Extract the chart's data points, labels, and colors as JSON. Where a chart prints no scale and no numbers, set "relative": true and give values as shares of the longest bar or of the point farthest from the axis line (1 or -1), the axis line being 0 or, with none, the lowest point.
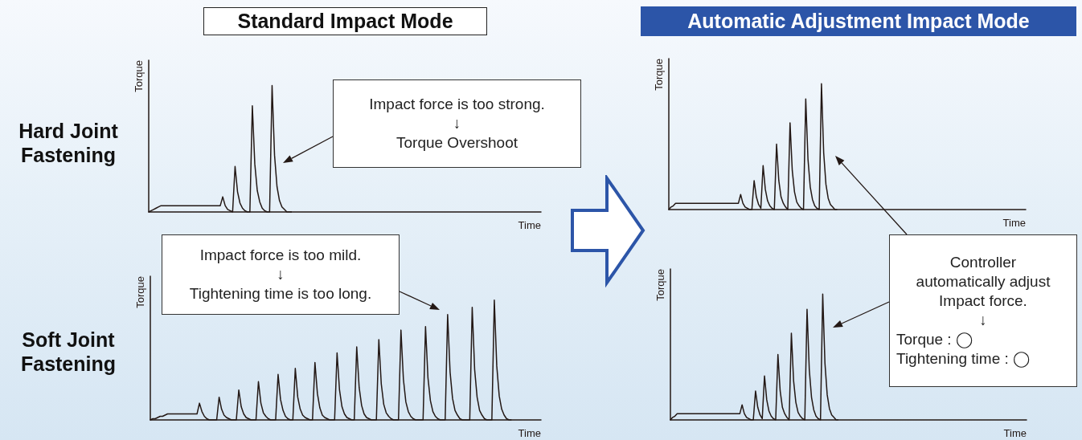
{
  "chart_data": [
    {
      "type": "line",
      "title": "Standard Impact Mode",
      "subtitle": "Hard Joint Fastening",
      "xlabel": "Time",
      "ylabel": "Torque",
      "relative": true,
      "grid": false,
      "annotations": [
        "Impact force is too strong.\n↓\nTorque Overshoot"
      ],
      "categories": [
        null,
        null,
        null,
        null,
        null,
        null,
        null,
        null,
        null,
        null,
        null,
        null,
        null,
        null,
        null,
        null,
        null,
        null,
        null,
        null,
        null,
        null,
        null,
        null,
        null,
        null,
        null,
        null,
        null,
        null,
        null,
        null,
        null,
        null,
        null,
        null,
        null,
        null,
        null,
        null,
        null,
        null,
        null,
        null,
        null,
        null,
        null,
        null,
        null,
        null,
        null,
        null,
        null,
        null,
        null,
        null,
        null,
        null,
        null,
        null,
        null,
        null,
        null,
        null,
        null,
        null,
        null,
        null,
        null,
        null,
        null,
        null,
        null,
        null,
        null,
        null,
        null,
        null,
        null,
        null,
        null,
        null,
        null,
        null,
        null,
        null,
        null,
        null,
        null,
        null,
        null,
        null,
        null,
        null,
        null,
        null,
        null,
        null,
        null,
        null,
        null,
        null,
        null,
        null,
        null,
        null,
        null,
        null,
        null,
        null,
        null,
        null,
        null,
        null,
        null,
        null,
        null,
        null,
        null,
        null,
        null,
        null,
        null,
        null,
        null,
        null,
        null,
        null,
        null,
        null,
        null,
        null,
        null,
        null,
        null,
        null,
        null,
        null,
        null,
        null,
        null,
        null,
        null,
        null,
        null,
        null,
        null,
        null,
        null,
        null,
        null,
        null,
        null,
        null,
        null,
        null,
        null,
        null,
        null,
        null
      ],
      "series": [
        {
          "color": "#231815",
          "values": [
            0,
            0.01,
            0.02,
            0.03,
            0.04,
            0.05,
            0.05,
            0.05,
            0.05,
            0.05,
            0.05,
            0.05,
            0.05,
            0.05,
            0.05,
            0.05,
            0.05,
            0.05,
            0.05,
            0.05,
            0.05,
            0.05,
            0.05,
            0.05,
            0.05,
            0.05,
            0.05,
            0.05,
            0.05,
            0.05,
            0.12,
            0.05,
            0.02,
            0.01,
            0,
            0.36,
            0.16,
            0.07,
            0.03,
            0.01,
            0,
            0,
            0.84,
            0.38,
            0.17,
            0.08,
            0.03,
            0.01,
            0,
            0,
            1,
            0.45,
            0.2,
            0.09,
            0.04,
            0.02,
            0,
            0,
            0,
            null,
            null,
            null,
            null,
            null,
            null,
            null,
            null,
            null,
            null,
            null,
            null,
            null,
            null,
            null,
            null,
            null,
            null,
            null,
            null,
            null,
            null,
            null,
            null,
            null,
            null,
            null,
            null,
            null,
            null,
            null,
            null,
            null,
            null,
            null,
            null,
            null,
            null,
            null,
            null,
            null,
            null,
            null,
            null,
            null,
            null,
            null,
            null,
            null,
            null,
            null,
            null,
            null,
            null,
            null,
            null,
            null,
            null,
            null,
            null,
            null,
            null,
            null,
            null,
            null,
            null,
            null,
            null,
            null,
            null,
            null,
            null,
            null,
            null,
            null,
            null,
            null,
            null,
            null,
            null,
            null,
            null,
            null,
            null,
            null,
            null,
            null,
            null,
            null,
            null,
            null,
            null,
            null,
            null,
            null,
            null,
            null,
            null,
            null,
            null,
            null
          ]
        }
      ]
    },
    {
      "type": "line",
      "subtitle": "Soft Joint Fastening",
      "xlabel": "Time",
      "ylabel": "Torque",
      "relative": true,
      "grid": false,
      "annotations": [
        "Impact force is too mild.\n↓\nTightening time is too long."
      ],
      "categories": [
        null,
        null,
        null,
        null,
        null,
        null,
        null,
        null,
        null,
        null,
        null,
        null,
        null,
        null,
        null,
        null,
        null,
        null,
        null,
        null,
        null,
        null,
        null,
        null,
        null,
        null,
        null,
        null,
        null,
        null,
        null,
        null,
        null,
        null,
        null,
        null,
        null,
        null,
        null,
        null,
        null,
        null,
        null,
        null,
        null,
        null,
        null,
        null,
        null,
        null,
        null,
        null,
        null,
        null,
        null,
        null,
        null,
        null,
        null,
        null,
        null,
        null,
        null,
        null,
        null,
        null,
        null,
        null,
        null,
        null,
        null,
        null,
        null,
        null,
        null,
        null,
        null,
        null,
        null,
        null,
        null,
        null,
        null,
        null,
        null,
        null,
        null,
        null,
        null,
        null,
        null,
        null,
        null,
        null,
        null,
        null,
        null,
        null,
        null,
        null,
        null,
        null,
        null,
        null,
        null,
        null,
        null,
        null,
        null,
        null,
        null,
        null,
        null,
        null,
        null,
        null,
        null,
        null,
        null,
        null,
        null,
        null,
        null,
        null,
        null,
        null,
        null,
        null,
        null,
        null,
        null,
        null,
        null,
        null,
        null,
        null,
        null,
        null,
        null,
        null,
        null,
        null,
        null,
        null,
        null,
        null,
        null,
        null,
        null,
        null,
        null,
        null,
        null,
        null,
        null,
        null,
        null,
        null,
        null,
        null
      ],
      "series": [
        {
          "color": "#231815",
          "values": [
            0,
            0.01,
            0.01,
            0.02,
            0.03,
            0.03,
            0.04,
            0.05,
            0.05,
            0.05,
            0.05,
            0.05,
            0.05,
            0.05,
            0.05,
            0.05,
            0.05,
            0.05,
            0.05,
            0.05,
            0.14,
            0.07,
            0.03,
            0.01,
            0,
            0,
            0,
            0,
            0.19,
            0.09,
            0.04,
            0.02,
            0.01,
            0,
            0,
            0,
            0.25,
            0.11,
            0.05,
            0.02,
            0.01,
            0,
            0,
            0,
            0.32,
            0.14,
            0.06,
            0.03,
            0.01,
            0,
            0,
            0,
            0.38,
            0.17,
            0.08,
            0.03,
            0.01,
            0,
            0,
            0.43,
            0.19,
            0.09,
            0.04,
            0.02,
            0.01,
            0,
            0,
            0.48,
            0.22,
            0.1,
            0.04,
            0.02,
            0.01,
            0,
            0,
            0,
            0.56,
            0.25,
            0.11,
            0.05,
            0.02,
            0.01,
            0,
            0,
            0.61,
            0.27,
            0.12,
            0.05,
            0.02,
            0.01,
            0,
            0,
            0,
            0.67,
            0.3,
            0.13,
            0.06,
            0.03,
            0.01,
            0,
            0,
            0,
            0.75,
            0.34,
            0.15,
            0.07,
            0.03,
            0.01,
            0,
            0,
            0,
            0,
            0.78,
            0.35,
            0.16,
            0.07,
            0.03,
            0.01,
            0,
            0,
            0,
            0.88,
            0.4,
            0.18,
            0.08,
            0.04,
            0.01,
            0,
            0,
            0,
            0,
            0.94,
            0.42,
            0.19,
            0.08,
            0.04,
            0.01,
            0,
            0,
            0,
            1,
            0.45,
            0.2,
            0.09,
            0.04,
            0.01,
            0,
            0,
            null,
            null,
            null,
            null,
            null,
            null,
            null,
            null,
            null,
            null,
            null,
            null
          ]
        }
      ]
    },
    {
      "type": "line",
      "title": "Automatic Adjustment Impact Mode",
      "xlabel": "Time",
      "ylabel": "Torque",
      "relative": true,
      "grid": false,
      "categories": [
        null,
        null,
        null,
        null,
        null,
        null,
        null,
        null,
        null,
        null,
        null,
        null,
        null,
        null,
        null,
        null,
        null,
        null,
        null,
        null,
        null,
        null,
        null,
        null,
        null,
        null,
        null,
        null,
        null,
        null,
        null,
        null,
        null,
        null,
        null,
        null,
        null,
        null,
        null,
        null,
        null,
        null,
        null,
        null,
        null,
        null,
        null,
        null,
        null,
        null,
        null,
        null,
        null,
        null,
        null,
        null,
        null,
        null,
        null,
        null,
        null,
        null,
        null,
        null,
        null,
        null,
        null,
        null,
        null,
        null,
        null,
        null,
        null,
        null,
        null,
        null,
        null,
        null,
        null,
        null,
        null,
        null,
        null,
        null,
        null,
        null,
        null,
        null,
        null,
        null,
        null,
        null,
        null,
        null,
        null,
        null,
        null,
        null,
        null,
        null,
        null,
        null,
        null,
        null,
        null,
        null,
        null,
        null,
        null,
        null,
        null,
        null,
        null,
        null,
        null,
        null,
        null,
        null,
        null,
        null,
        null,
        null,
        null,
        null,
        null,
        null,
        null,
        null,
        null,
        null,
        null,
        null,
        null,
        null,
        null,
        null,
        null,
        null,
        null,
        null,
        null,
        null,
        null,
        null,
        null,
        null,
        null,
        null,
        null,
        null,
        null,
        null,
        null,
        null,
        null,
        null,
        null,
        null,
        null,
        null
      ],
      "series": [
        {
          "color": "#231815",
          "values": [
            0,
            0.02,
            0.03,
            0.05,
            0.05,
            0.05,
            0.05,
            0.05,
            0.05,
            0.05,
            0.05,
            0.05,
            0.05,
            0.05,
            0.05,
            0.05,
            0.05,
            0.05,
            0.05,
            0.05,
            0.05,
            0.05,
            0.05,
            0.05,
            0.05,
            0.05,
            0.05,
            0.05,
            0.05,
            0.05,
            0.05,
            0.05,
            0.12,
            0.05,
            0.02,
            0.01,
            0,
            0,
            0.23,
            0.1,
            0.04,
            0.01,
            0.35,
            0.16,
            0.07,
            0.03,
            0.01,
            0,
            0.52,
            0.23,
            0.1,
            0.05,
            0.02,
            0,
            0.69,
            0.31,
            0.14,
            0.06,
            0.03,
            0.01,
            0,
            0.88,
            0.4,
            0.18,
            0.08,
            0.03,
            0.01,
            0,
            1,
            0.45,
            0.2,
            0.09,
            0.04,
            0.02,
            0,
            0,
            null,
            null,
            null,
            null,
            null,
            null,
            null,
            null,
            null,
            null,
            null,
            null,
            null,
            null,
            null,
            null,
            null,
            null,
            null,
            null,
            null,
            null,
            null,
            null,
            null,
            null,
            null,
            null,
            null,
            null,
            null,
            null,
            null,
            null,
            null,
            null,
            null,
            null,
            null,
            null,
            null,
            null,
            null,
            null,
            null,
            null,
            null,
            null,
            null,
            null,
            null,
            null,
            null,
            null,
            null,
            null,
            null,
            null,
            null,
            null,
            null,
            null,
            null,
            null,
            null,
            null,
            null,
            null,
            null,
            null,
            null,
            null,
            null,
            null,
            null,
            null,
            null,
            null,
            null,
            null,
            null,
            null,
            null,
            null
          ]
        }
      ]
    },
    {
      "type": "line",
      "xlabel": "Time",
      "ylabel": "Torque",
      "relative": true,
      "grid": false,
      "annotations": [
        "Controller\nautomatically adjust\nImpact force.\n↓",
        "Torque : ◯\nTightening time : ◯"
      ],
      "categories": [
        null,
        null,
        null,
        null,
        null,
        null,
        null,
        null,
        null,
        null,
        null,
        null,
        null,
        null,
        null,
        null,
        null,
        null,
        null,
        null,
        null,
        null,
        null,
        null,
        null,
        null,
        null,
        null,
        null,
        null,
        null,
        null,
        null,
        null,
        null,
        null,
        null,
        null,
        null,
        null,
        null,
        null,
        null,
        null,
        null,
        null,
        null,
        null,
        null,
        null,
        null,
        null,
        null,
        null,
        null,
        null,
        null,
        null,
        null,
        null,
        null,
        null,
        null,
        null,
        null,
        null,
        null,
        null,
        null,
        null,
        null,
        null,
        null,
        null,
        null,
        null,
        null,
        null,
        null,
        null,
        null,
        null,
        null,
        null,
        null,
        null,
        null,
        null,
        null,
        null,
        null,
        null,
        null,
        null,
        null,
        null,
        null,
        null,
        null,
        null,
        null,
        null,
        null,
        null,
        null,
        null,
        null,
        null,
        null,
        null,
        null,
        null,
        null,
        null,
        null,
        null,
        null,
        null,
        null,
        null,
        null,
        null,
        null,
        null,
        null,
        null,
        null,
        null,
        null,
        null,
        null,
        null,
        null,
        null,
        null,
        null,
        null,
        null,
        null,
        null,
        null,
        null,
        null,
        null,
        null,
        null,
        null,
        null,
        null,
        null,
        null,
        null,
        null,
        null,
        null,
        null,
        null,
        null,
        null,
        null
      ],
      "series": [
        {
          "color": "#231815",
          "values": [
            0,
            0.02,
            0.03,
            0.05,
            0.05,
            0.05,
            0.05,
            0.05,
            0.05,
            0.05,
            0.05,
            0.05,
            0.05,
            0.05,
            0.05,
            0.05,
            0.05,
            0.05,
            0.05,
            0.05,
            0.05,
            0.05,
            0.05,
            0.05,
            0.05,
            0.05,
            0.05,
            0.05,
            0.05,
            0.05,
            0.05,
            0.05,
            0.12,
            0.05,
            0.02,
            0.01,
            0,
            0,
            0.23,
            0.1,
            0.04,
            0.01,
            0.35,
            0.16,
            0.07,
            0.03,
            0.01,
            0,
            0.52,
            0.23,
            0.1,
            0.05,
            0.02,
            0,
            0.69,
            0.31,
            0.14,
            0.06,
            0.03,
            0.01,
            0,
            0.88,
            0.4,
            0.18,
            0.08,
            0.03,
            0.01,
            0,
            1,
            0.45,
            0.2,
            0.09,
            0.04,
            0.02,
            0,
            0,
            null,
            null,
            null,
            null,
            null,
            null,
            null,
            null,
            null,
            null,
            null,
            null,
            null,
            null,
            null,
            null,
            null,
            null,
            null,
            null,
            null,
            null,
            null,
            null,
            null,
            null,
            null,
            null,
            null,
            null,
            null,
            null,
            null,
            null,
            null,
            null,
            null,
            null,
            null,
            null,
            null,
            null,
            null,
            null,
            null,
            null,
            null,
            null,
            null,
            null,
            null,
            null,
            null,
            null,
            null,
            null,
            null,
            null,
            null,
            null,
            null,
            null,
            null,
            null,
            null,
            null,
            null,
            null,
            null,
            null,
            null,
            null,
            null,
            null,
            null,
            null,
            null,
            null,
            null,
            null,
            null,
            null,
            null,
            null
          ]
        }
      ]
    }
  ]
}
